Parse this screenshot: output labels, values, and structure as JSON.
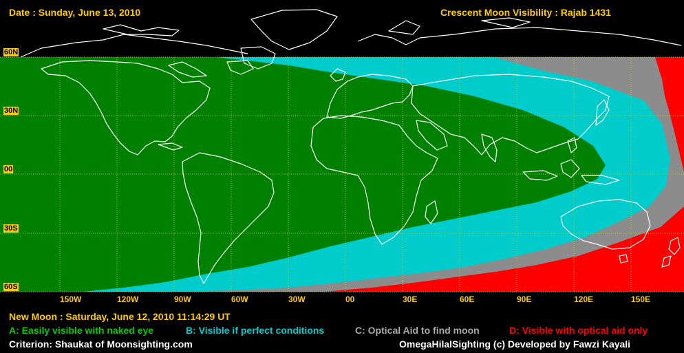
{
  "header": {
    "date": "Date : Sunday, June 13, 2010",
    "title": "Crescent Moon Visibility : Rajab  1431"
  },
  "axes": {
    "lat_labels": [
      "60N",
      "30N",
      "00",
      "30S",
      "60S"
    ],
    "lon_labels": [
      "150W",
      "120W",
      "90W",
      "60W",
      "30W",
      "00",
      "30E",
      "60E",
      "90E",
      "120E",
      "150E"
    ]
  },
  "colors": {
    "zone_a": "#008000",
    "zone_b": "#00cccc",
    "zone_c": "#8c8c8c",
    "zone_d": "#ff0000",
    "label_yellow": "#ffcc00",
    "grid": "#c8c800",
    "coast": "#ffffff"
  },
  "legend": {
    "new_moon": "New Moon : Saturday, June 12, 2010  11:14:29  UT",
    "a": "A: Easily visible with naked eye",
    "b": "B: Visible if perfect conditions",
    "c": "C: Optical Aid to find moon",
    "d": "D: Visible with optical aid only"
  },
  "footer": {
    "criterion": "Criterion: Shaukat of Moonsighting.com",
    "credit": "OmegaHilalSighting  (c)  Developed by Fawzi Kayali"
  }
}
